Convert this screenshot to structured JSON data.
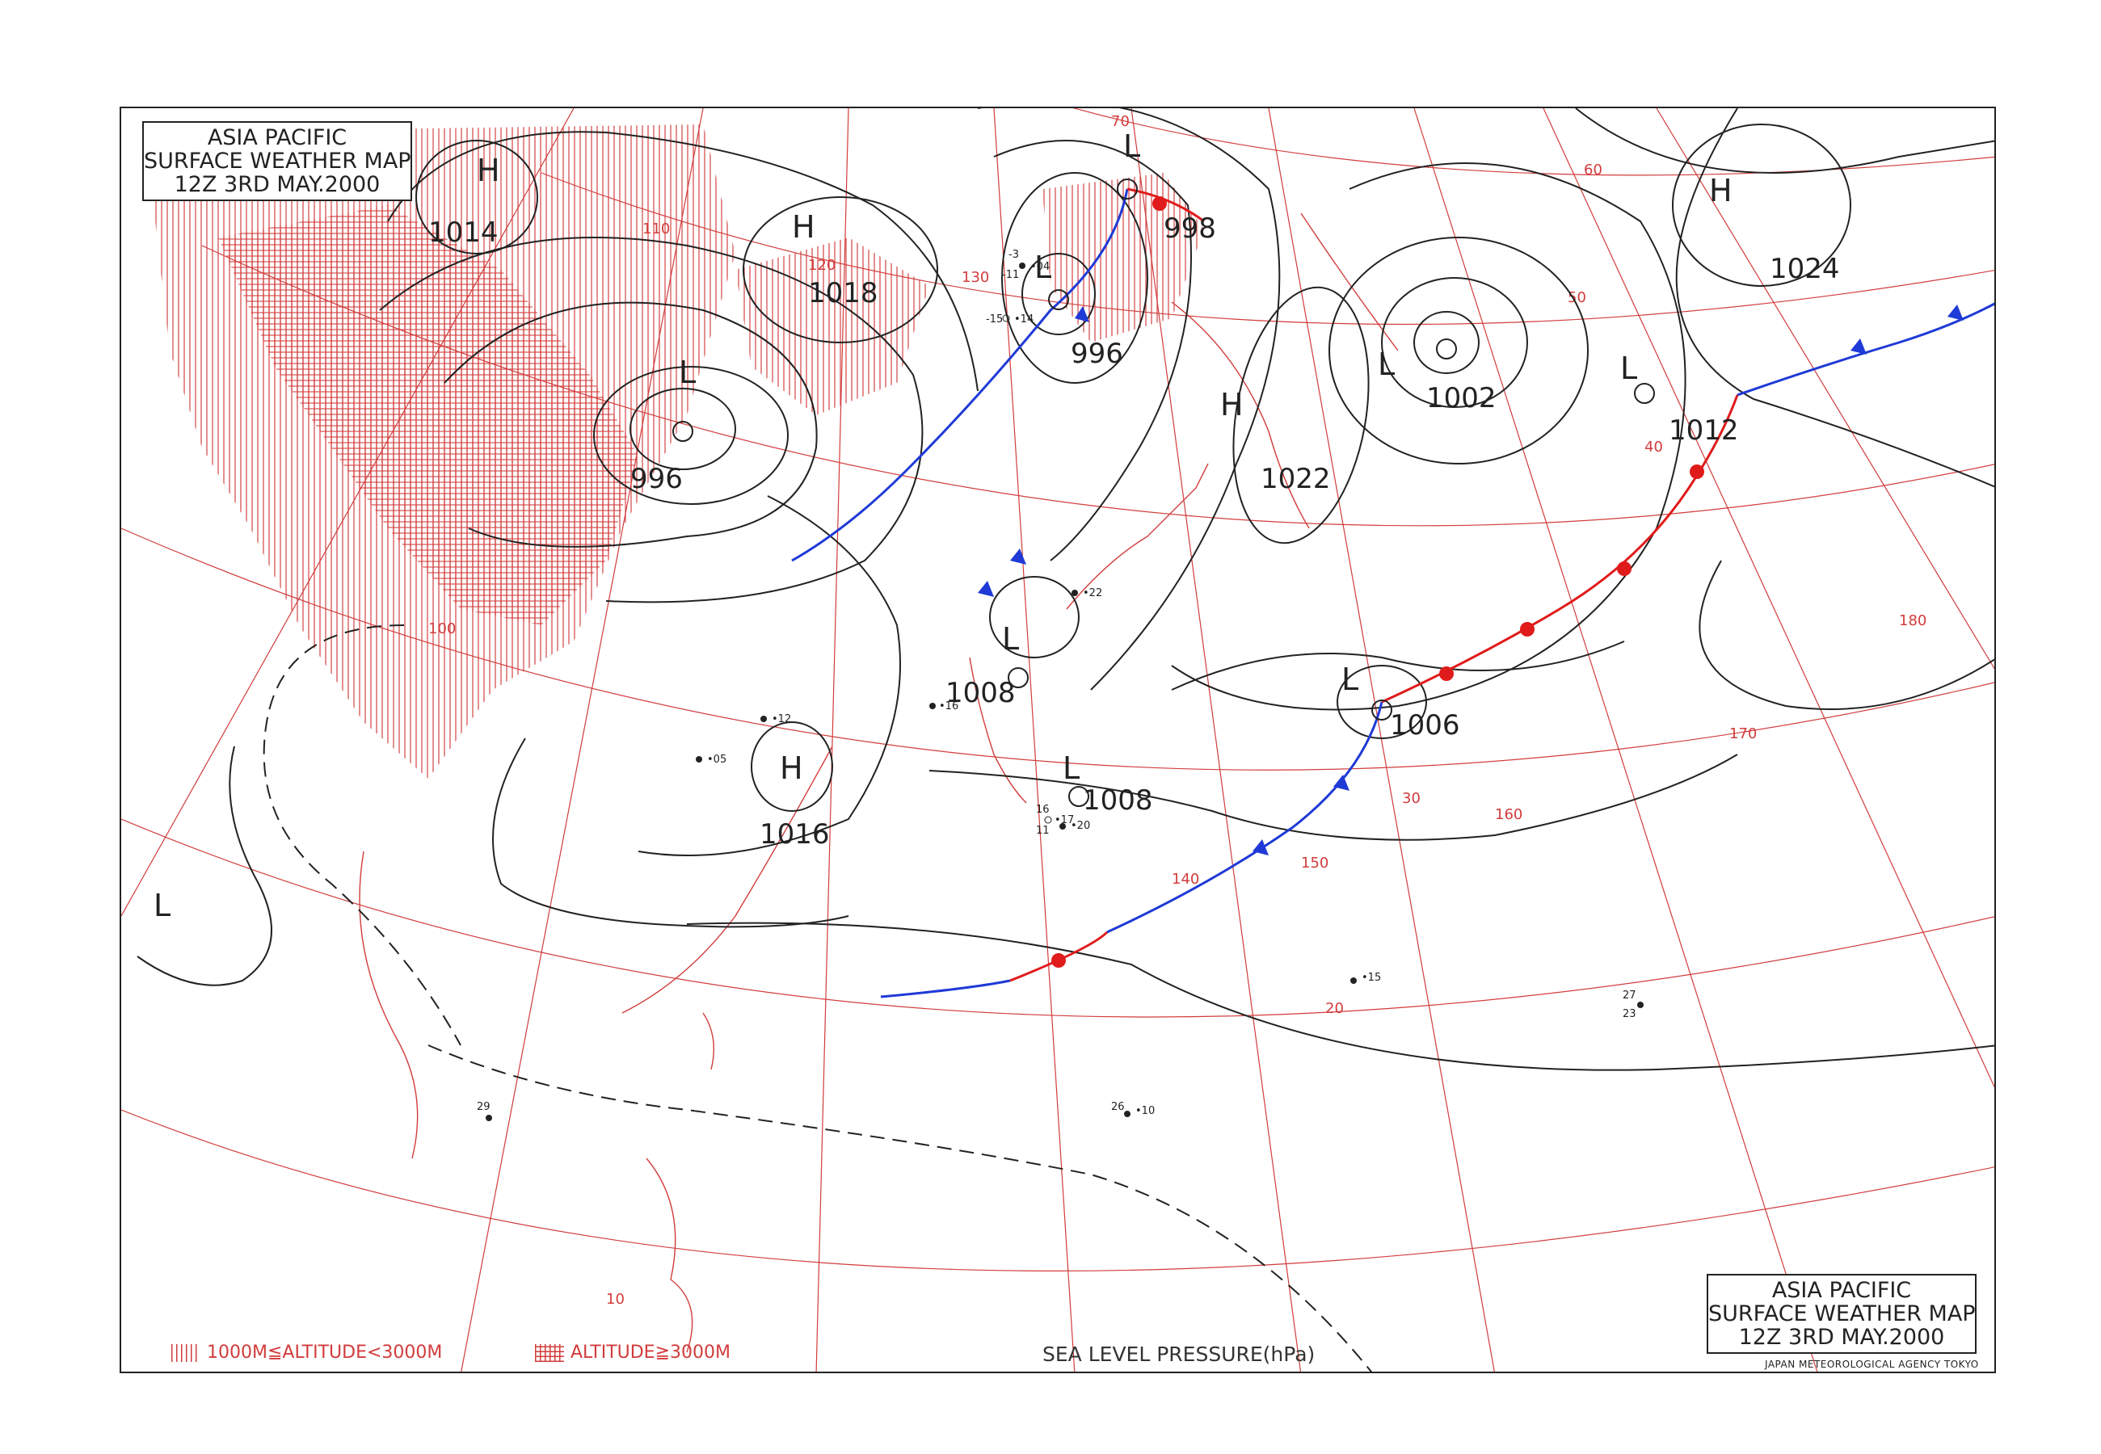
{
  "title": {
    "line1": "ASIA PACIFIC",
    "line2": "SURFACE WEATHER MAP",
    "line3": "12Z   3RD MAY.2000"
  },
  "agency": "JAPAN METEOROLOGICAL AGENCY TOKYO",
  "legend": {
    "mid_altitude": "1000M≦ALTITUDE<3000M",
    "high_altitude": "ALTITUDE≧3000M",
    "units": "SEA LEVEL PRESSURE(hPa)"
  },
  "colors": {
    "grid": "#d23c3c",
    "isobar": "#222222",
    "cold_front": "#1f3ad6",
    "warm_front": "#e01b1b",
    "terrain": "#d23c3c"
  },
  "pressure_centers": [
    {
      "kind": "H",
      "value": "1014"
    },
    {
      "kind": "H",
      "value": "1018"
    },
    {
      "kind": "L",
      "value": "996"
    },
    {
      "kind": "L",
      "value": "998"
    },
    {
      "kind": "L",
      "value": "996"
    },
    {
      "kind": "H",
      "value": "1022"
    },
    {
      "kind": "L",
      "value": "1002"
    },
    {
      "kind": "H",
      "value": "1024"
    },
    {
      "kind": "L",
      "value": "1012"
    },
    {
      "kind": "L",
      "value": "1008"
    },
    {
      "kind": "L",
      "value": "1008"
    },
    {
      "kind": "H",
      "value": "1016"
    },
    {
      "kind": "L",
      "value": "1006"
    },
    {
      "kind": "L",
      "value": ""
    }
  ],
  "grid_labels": {
    "latitudes": [
      "70",
      "60",
      "50",
      "40",
      "30",
      "20",
      "10"
    ],
    "longitudes": [
      "100",
      "110",
      "120",
      "130",
      "140",
      "150",
      "160",
      "170",
      "180"
    ]
  },
  "station_samples": [
    "-3",
    "-11",
    "•04",
    "-15",
    "•14",
    "26",
    "•10",
    "•15",
    "27",
    "23",
    "•20",
    "•05",
    "•12",
    "16",
    "11",
    "•17",
    "•16",
    "•22",
    "29"
  ]
}
